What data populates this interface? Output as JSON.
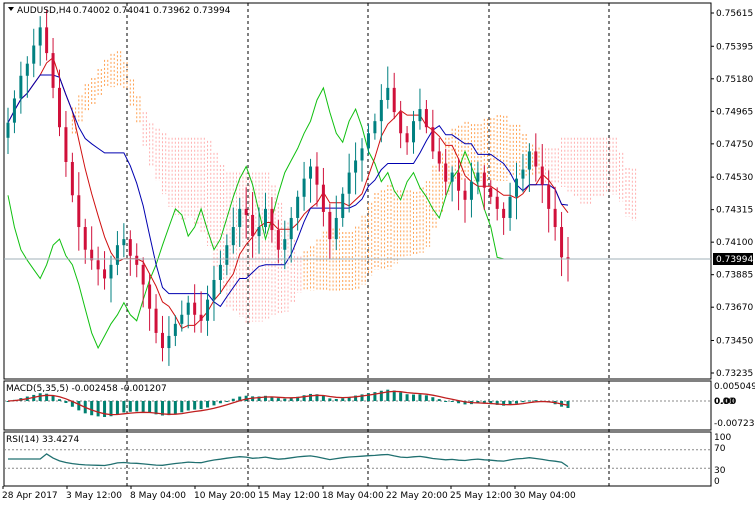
{
  "symbol_header": {
    "symbol": "AUDUSD,H4",
    "ohlc": "0.74002 0.74041 0.73962 0.73994"
  },
  "macd_header": "MACD(5,35,5) -0.002458 -0.001207",
  "rsi_header": "RSI(14) 33.4274",
  "price_axis": [
    "0.75615",
    "0.75395",
    "0.75180",
    "0.74965",
    "0.74750",
    "0.74530",
    "0.74315",
    "0.74100",
    "0.73885",
    "0.73670",
    "0.73450",
    "0.73235"
  ],
  "current_price": "0.73994",
  "macd_axis": [
    "0.005049",
    "0.00",
    "-0.007239"
  ],
  "macd_zero_label": "0.00",
  "rsi_axis": [
    "100",
    "70",
    "30",
    "0"
  ],
  "time_axis": [
    "28 Apr 2017",
    "3 May 12:00",
    "8 May 04:00",
    "10 May 20:00",
    "15 May 12:00",
    "18 May 04:00",
    "22 May 20:00",
    "25 May 12:00",
    "30 May 04:00"
  ],
  "colors": {
    "bull": "#008080",
    "bear": "#d0103a",
    "tenkan": "#d01010",
    "kijun": "#0000b0",
    "chikou": "#10c010",
    "cloud_a": "#ffb0b0",
    "cloud_b": "#ffa050",
    "grid": "#000000",
    "rsi_line": "#207070",
    "macd_hist": "#008070",
    "macd_signal": "#c02020"
  },
  "chart_data": {
    "type": "candlestick",
    "timeframe": "H4",
    "price_range": [
      0.73235,
      0.75615
    ],
    "last_close": 0.73994,
    "closes": [
      0.7489,
      0.7505,
      0.752,
      0.7528,
      0.754,
      0.7552,
      0.7535,
      0.7512,
      0.7486,
      0.7463,
      0.7441,
      0.742,
      0.7405,
      0.7398,
      0.7392,
      0.7386,
      0.7395,
      0.7408,
      0.7412,
      0.7401,
      0.7395,
      0.7382,
      0.7366,
      0.735,
      0.734,
      0.7348,
      0.7356,
      0.7362,
      0.737,
      0.7362,
      0.7358,
      0.7372,
      0.7385,
      0.7395,
      0.7408,
      0.742,
      0.7432,
      0.7428,
      0.7414,
      0.742,
      0.7432,
      0.7418,
      0.7405,
      0.7412,
      0.7426,
      0.744,
      0.7452,
      0.746,
      0.7448,
      0.743,
      0.7412,
      0.7426,
      0.7442,
      0.7456,
      0.7464,
      0.7472,
      0.7482,
      0.749,
      0.7504,
      0.7512,
      0.7496,
      0.7482,
      0.7476,
      0.749,
      0.7498,
      0.7486,
      0.747,
      0.7462,
      0.745,
      0.7456,
      0.7444,
      0.7438,
      0.745,
      0.7456,
      0.7446,
      0.744,
      0.7432,
      0.7426,
      0.744,
      0.7452,
      0.7458,
      0.747,
      0.746,
      0.7448,
      0.7432,
      0.742,
      0.74,
      0.7399
    ],
    "rsi_levels": [
      70,
      30
    ],
    "rsi_last": 33.4274,
    "macd_last": -0.002458,
    "macd_signal_last": -0.001207
  }
}
